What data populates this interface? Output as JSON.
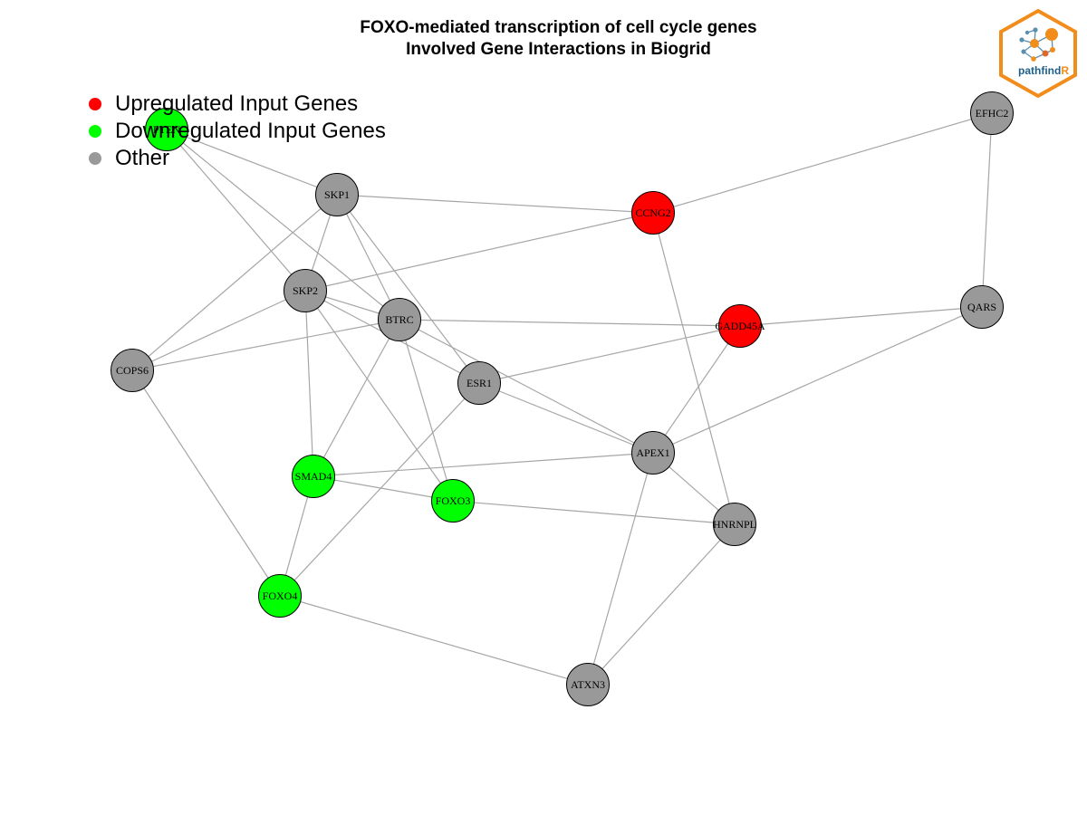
{
  "title": {
    "line1": "FOXO-mediated transcription of cell cycle genes",
    "line2": "Involved Gene Interactions in Biogrid"
  },
  "legend": {
    "upregulated": {
      "label": "Upregulated Input Genes",
      "color": "#ff0000"
    },
    "downregulated": {
      "label": "Downregulated Input Genes",
      "color": "#00ff00"
    },
    "other": {
      "label": "Other",
      "color": "#999999"
    }
  },
  "logo": {
    "text_main": "pathfind",
    "text_accent": "R",
    "border_color": "#f28c1b",
    "text_color": "#1f5f8b"
  },
  "colors": {
    "up": "#ff0000",
    "down": "#00ff00",
    "other": "#999999",
    "edge": "#a6a6a6",
    "node_border": "#000000"
  },
  "nodes": [
    {
      "id": "PTEN",
      "label": "PTEN",
      "status": "down"
    },
    {
      "id": "SKP1",
      "label": "SKP1",
      "status": "other"
    },
    {
      "id": "CCNG2",
      "label": "CCNG2",
      "status": "up"
    },
    {
      "id": "EFHC2",
      "label": "EFHC2",
      "status": "other"
    },
    {
      "id": "SKP2",
      "label": "SKP2",
      "status": "other"
    },
    {
      "id": "BTRC",
      "label": "BTRC",
      "status": "other"
    },
    {
      "id": "GADD45A",
      "label": "GADD45A",
      "status": "up"
    },
    {
      "id": "QARS",
      "label": "QARS",
      "status": "other"
    },
    {
      "id": "COPS6",
      "label": "COPS6",
      "status": "other"
    },
    {
      "id": "ESR1",
      "label": "ESR1",
      "status": "other"
    },
    {
      "id": "APEX1",
      "label": "APEX1",
      "status": "other"
    },
    {
      "id": "SMAD4",
      "label": "SMAD4",
      "status": "down"
    },
    {
      "id": "FOXO3",
      "label": "FOXO3",
      "status": "down"
    },
    {
      "id": "HNRNPL",
      "label": "HNRNPL",
      "status": "other"
    },
    {
      "id": "FOXO4",
      "label": "FOXO4",
      "status": "down"
    },
    {
      "id": "ATXN3",
      "label": "ATXN3",
      "status": "other"
    }
  ],
  "edges": [
    [
      "PTEN",
      "SKP1"
    ],
    [
      "PTEN",
      "SKP2"
    ],
    [
      "PTEN",
      "BTRC"
    ],
    [
      "SKP1",
      "CCNG2"
    ],
    [
      "SKP1",
      "SKP2"
    ],
    [
      "SKP1",
      "BTRC"
    ],
    [
      "SKP1",
      "COPS6"
    ],
    [
      "SKP1",
      "ESR1"
    ],
    [
      "CCNG2",
      "EFHC2"
    ],
    [
      "CCNG2",
      "SKP2"
    ],
    [
      "CCNG2",
      "HNRNPL"
    ],
    [
      "EFHC2",
      "QARS"
    ],
    [
      "SKP2",
      "BTRC"
    ],
    [
      "SKP2",
      "COPS6"
    ],
    [
      "SKP2",
      "ESR1"
    ],
    [
      "SKP2",
      "SMAD4"
    ],
    [
      "SKP2",
      "FOXO3"
    ],
    [
      "BTRC",
      "GADD45A"
    ],
    [
      "BTRC",
      "COPS6"
    ],
    [
      "BTRC",
      "APEX1"
    ],
    [
      "BTRC",
      "SMAD4"
    ],
    [
      "BTRC",
      "FOXO3"
    ],
    [
      "GADD45A",
      "QARS"
    ],
    [
      "GADD45A",
      "ESR1"
    ],
    [
      "GADD45A",
      "APEX1"
    ],
    [
      "QARS",
      "APEX1"
    ],
    [
      "COPS6",
      "FOXO4"
    ],
    [
      "ESR1",
      "APEX1"
    ],
    [
      "ESR1",
      "FOXO4"
    ],
    [
      "APEX1",
      "SMAD4"
    ],
    [
      "APEX1",
      "HNRNPL"
    ],
    [
      "APEX1",
      "ATXN3"
    ],
    [
      "SMAD4",
      "FOXO3"
    ],
    [
      "SMAD4",
      "FOXO4"
    ],
    [
      "FOXO3",
      "HNRNPL"
    ],
    [
      "HNRNPL",
      "ATXN3"
    ],
    [
      "FOXO4",
      "ATXN3"
    ]
  ]
}
